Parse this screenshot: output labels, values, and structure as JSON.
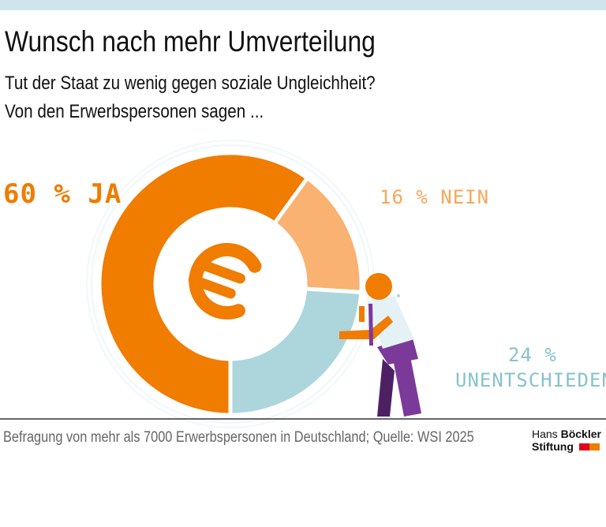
{
  "header": {
    "title": "Wunsch nach mehr Umverteilung",
    "subtitle1": "Tut der Staat zu wenig gegen soziale Ungleichheit?",
    "subtitle2": "Von den Erwerbspersonen sagen  ..."
  },
  "chart_data": {
    "type": "pie",
    "title": "Wunsch nach mehr Umverteilung",
    "categories": [
      "JA",
      "NEIN",
      "UNENTSCHIEDEN"
    ],
    "values": [
      60,
      16,
      24
    ],
    "unit": "%",
    "labels": [
      "60 % JA",
      "16 % NEIN",
      "24 %",
      "UNENTSCHIEDEN"
    ],
    "colors": [
      "#f07c00",
      "#f9b271",
      "#acd6dc"
    ],
    "center_icon": "euro-icon",
    "donut": true
  },
  "footer": {
    "source": "Befragung von mehr als 7000 Erwerbspersonen in Deutschland; Quelle: WSI 2025"
  },
  "logo": {
    "line1a": "Hans",
    "line1b": "Böckler",
    "line2": "Stiftung",
    "colors": [
      "#e2001a",
      "#f07c00"
    ]
  }
}
